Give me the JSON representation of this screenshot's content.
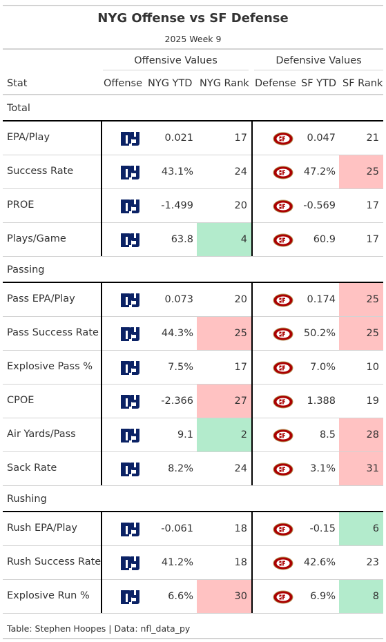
{
  "title": "NYG Offense vs SF Defense",
  "subtitle": "2025 Week 9",
  "spanners": {
    "offense": "Offensive Values",
    "defense": "Defensive Values"
  },
  "columns": {
    "stat": "Stat",
    "offense": "Offense",
    "off_ytd": "NYG YTD",
    "off_rank": "NYG Rank",
    "defense": "Defense",
    "def_ytd": "SF YTD",
    "def_rank": "SF Rank"
  },
  "colors": {
    "bad": "#ffc2c2",
    "good": "#b3ebcc",
    "giants_blue": "#0b2265",
    "niners_red": "#aa0000",
    "niners_gold": "#b3995d"
  },
  "logos": {
    "offense": "ny-logo-icon",
    "defense": "sf-logo-icon"
  },
  "groups": [
    {
      "name": "Total",
      "rows": [
        {
          "stat": "EPA/Play",
          "off_ytd": "0.021",
          "off_rank": "17",
          "off_hl": "",
          "def_ytd": "0.047",
          "def_rank": "21",
          "def_hl": ""
        },
        {
          "stat": "Success Rate",
          "off_ytd": "43.1%",
          "off_rank": "24",
          "off_hl": "",
          "def_ytd": "47.2%",
          "def_rank": "25",
          "def_hl": "bad"
        },
        {
          "stat": "PROE",
          "off_ytd": "-1.499",
          "off_rank": "20",
          "off_hl": "",
          "def_ytd": "-0.569",
          "def_rank": "17",
          "def_hl": ""
        },
        {
          "stat": "Plays/Game",
          "off_ytd": "63.8",
          "off_rank": "4",
          "off_hl": "good",
          "def_ytd": "60.9",
          "def_rank": "17",
          "def_hl": ""
        }
      ]
    },
    {
      "name": "Passing",
      "rows": [
        {
          "stat": "Pass EPA/Play",
          "off_ytd": "0.073",
          "off_rank": "20",
          "off_hl": "",
          "def_ytd": "0.174",
          "def_rank": "25",
          "def_hl": "bad"
        },
        {
          "stat": "Pass Success Rate",
          "off_ytd": "44.3%",
          "off_rank": "25",
          "off_hl": "bad",
          "def_ytd": "50.2%",
          "def_rank": "25",
          "def_hl": "bad"
        },
        {
          "stat": "Explosive Pass %",
          "off_ytd": "7.5%",
          "off_rank": "17",
          "off_hl": "",
          "def_ytd": "7.0%",
          "def_rank": "10",
          "def_hl": ""
        },
        {
          "stat": "CPOE",
          "off_ytd": "-2.366",
          "off_rank": "27",
          "off_hl": "bad",
          "def_ytd": "1.388",
          "def_rank": "19",
          "def_hl": ""
        },
        {
          "stat": "Air Yards/Pass",
          "off_ytd": "9.1",
          "off_rank": "2",
          "off_hl": "good",
          "def_ytd": "8.5",
          "def_rank": "28",
          "def_hl": "bad"
        },
        {
          "stat": "Sack Rate",
          "off_ytd": "8.2%",
          "off_rank": "24",
          "off_hl": "",
          "def_ytd": "3.1%",
          "def_rank": "31",
          "def_hl": "bad"
        }
      ]
    },
    {
      "name": "Rushing",
      "rows": [
        {
          "stat": "Rush EPA/Play",
          "off_ytd": "-0.061",
          "off_rank": "18",
          "off_hl": "",
          "def_ytd": "-0.15",
          "def_rank": "6",
          "def_hl": "good"
        },
        {
          "stat": "Rush Success Rate",
          "off_ytd": "41.2%",
          "off_rank": "18",
          "off_hl": "",
          "def_ytd": "42.6%",
          "def_rank": "23",
          "def_hl": ""
        },
        {
          "stat": "Explosive Run %",
          "off_ytd": "6.6%",
          "off_rank": "30",
          "off_hl": "bad",
          "def_ytd": "6.9%",
          "def_rank": "8",
          "def_hl": "good"
        }
      ]
    }
  ],
  "footer": "Table: Stephen Hoopes | Data: nfl_data_py"
}
